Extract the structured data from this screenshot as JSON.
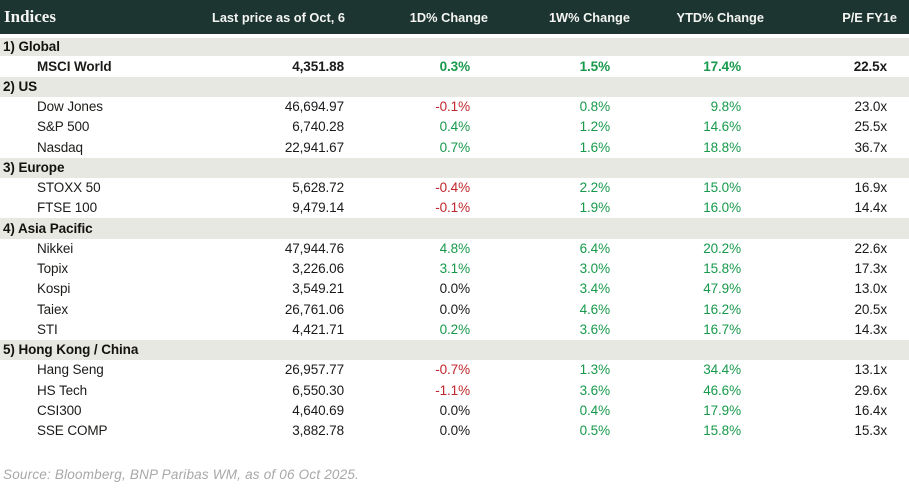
{
  "colors": {
    "header_bg": "#1d3530",
    "header_text": "#f4f5f2",
    "section_bg": "#e7e8e1",
    "up": "#17994b",
    "down": "#c0272c",
    "neutral": "#1a1a1a",
    "source": "#a8a8a8"
  },
  "table": {
    "title": "Indices",
    "columns": [
      "Last price as of Oct, 6",
      "1D% Change",
      "1W% Change",
      "YTD% Change",
      "P/E FY1e"
    ],
    "sections": [
      {
        "label": "1) Global",
        "rows": [
          {
            "name": "MSCI World",
            "bold": true,
            "last_price": "4,351.88",
            "d1": {
              "text": "0.3%",
              "trend": "up"
            },
            "w1": {
              "text": "1.5%",
              "trend": "up"
            },
            "ytd": {
              "text": "17.4%",
              "trend": "up"
            },
            "pe": "22.5x"
          }
        ]
      },
      {
        "label": "2) US",
        "rows": [
          {
            "name": "Dow Jones",
            "bold": false,
            "last_price": "46,694.97",
            "d1": {
              "text": "-0.1%",
              "trend": "down"
            },
            "w1": {
              "text": "0.8%",
              "trend": "up"
            },
            "ytd": {
              "text": "9.8%",
              "trend": "up"
            },
            "pe": "23.0x"
          },
          {
            "name": "S&P 500",
            "bold": false,
            "last_price": "6,740.28",
            "d1": {
              "text": "0.4%",
              "trend": "up"
            },
            "w1": {
              "text": "1.2%",
              "trend": "up"
            },
            "ytd": {
              "text": "14.6%",
              "trend": "up"
            },
            "pe": "25.5x"
          },
          {
            "name": "Nasdaq",
            "bold": false,
            "last_price": "22,941.67",
            "d1": {
              "text": "0.7%",
              "trend": "up"
            },
            "w1": {
              "text": "1.6%",
              "trend": "up"
            },
            "ytd": {
              "text": "18.8%",
              "trend": "up"
            },
            "pe": "36.7x"
          }
        ]
      },
      {
        "label": "3) Europe",
        "rows": [
          {
            "name": "STOXX 50",
            "bold": false,
            "last_price": "5,628.72",
            "d1": {
              "text": "-0.4%",
              "trend": "down"
            },
            "w1": {
              "text": "2.2%",
              "trend": "up"
            },
            "ytd": {
              "text": "15.0%",
              "trend": "up"
            },
            "pe": "16.9x"
          },
          {
            "name": "FTSE 100",
            "bold": false,
            "last_price": "9,479.14",
            "d1": {
              "text": "-0.1%",
              "trend": "down"
            },
            "w1": {
              "text": "1.9%",
              "trend": "up"
            },
            "ytd": {
              "text": "16.0%",
              "trend": "up"
            },
            "pe": "14.4x"
          }
        ]
      },
      {
        "label": "4) Asia Pacific",
        "rows": [
          {
            "name": "Nikkei",
            "bold": false,
            "last_price": "47,944.76",
            "d1": {
              "text": "4.8%",
              "trend": "up"
            },
            "w1": {
              "text": "6.4%",
              "trend": "up"
            },
            "ytd": {
              "text": "20.2%",
              "trend": "up"
            },
            "pe": "22.6x"
          },
          {
            "name": "Topix",
            "bold": false,
            "last_price": "3,226.06",
            "d1": {
              "text": "3.1%",
              "trend": "up"
            },
            "w1": {
              "text": "3.0%",
              "trend": "up"
            },
            "ytd": {
              "text": "15.8%",
              "trend": "up"
            },
            "pe": "17.3x"
          },
          {
            "name": "Kospi",
            "bold": false,
            "last_price": "3,549.21",
            "d1": {
              "text": "0.0%",
              "trend": "flat"
            },
            "w1": {
              "text": "3.4%",
              "trend": "up"
            },
            "ytd": {
              "text": "47.9%",
              "trend": "up"
            },
            "pe": "13.0x"
          },
          {
            "name": "Taiex",
            "bold": false,
            "last_price": "26,761.06",
            "d1": {
              "text": "0.0%",
              "trend": "flat"
            },
            "w1": {
              "text": "4.6%",
              "trend": "up"
            },
            "ytd": {
              "text": "16.2%",
              "trend": "up"
            },
            "pe": "20.5x"
          },
          {
            "name": "STI",
            "bold": false,
            "last_price": "4,421.71",
            "d1": {
              "text": "0.2%",
              "trend": "up"
            },
            "w1": {
              "text": "3.6%",
              "trend": "up"
            },
            "ytd": {
              "text": "16.7%",
              "trend": "up"
            },
            "pe": "14.3x"
          }
        ]
      },
      {
        "label": "5) Hong Kong / China",
        "rows": [
          {
            "name": "Hang Seng",
            "bold": false,
            "last_price": "26,957.77",
            "d1": {
              "text": "-0.7%",
              "trend": "down"
            },
            "w1": {
              "text": "1.3%",
              "trend": "up"
            },
            "ytd": {
              "text": "34.4%",
              "trend": "up"
            },
            "pe": "13.1x"
          },
          {
            "name": "HS Tech",
            "bold": false,
            "last_price": "6,550.30",
            "d1": {
              "text": "-1.1%",
              "trend": "down"
            },
            "w1": {
              "text": "3.6%",
              "trend": "up"
            },
            "ytd": {
              "text": "46.6%",
              "trend": "up"
            },
            "pe": "29.6x"
          },
          {
            "name": "CSI300",
            "bold": false,
            "last_price": "4,640.69",
            "d1": {
              "text": "0.0%",
              "trend": "flat"
            },
            "w1": {
              "text": "0.4%",
              "trend": "up"
            },
            "ytd": {
              "text": "17.9%",
              "trend": "up"
            },
            "pe": "16.4x"
          },
          {
            "name": "SSE COMP",
            "bold": false,
            "last_price": "3,882.78",
            "d1": {
              "text": "0.0%",
              "trend": "flat"
            },
            "w1": {
              "text": "0.5%",
              "trend": "up"
            },
            "ytd": {
              "text": "15.8%",
              "trend": "up"
            },
            "pe": "15.3x"
          }
        ]
      }
    ]
  },
  "footer": {
    "source": "Source: Bloomberg, BNP Paribas WM, as of 06 Oct 2025."
  }
}
